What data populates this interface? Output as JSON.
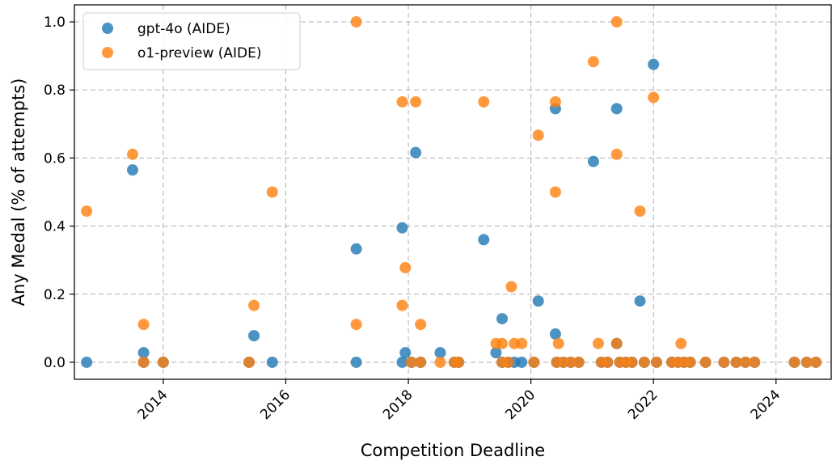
{
  "chart_data": {
    "type": "scatter",
    "xlabel": "Competition Deadline",
    "ylabel": "Any Medal (% of attempts)",
    "xlim": [
      2012.55,
      2024.9
    ],
    "ylim": [
      -0.05,
      1.05
    ],
    "x_ticks": [
      2014,
      2016,
      2018,
      2020,
      2022,
      2024
    ],
    "x_tick_labels": [
      "2014",
      "2016",
      "2018",
      "2020",
      "2022",
      "2024"
    ],
    "y_ticks": [
      0.0,
      0.2,
      0.4,
      0.6,
      0.8,
      1.0
    ],
    "y_tick_labels": [
      "0.0",
      "0.2",
      "0.4",
      "0.6",
      "0.8",
      "1.0"
    ],
    "grid": true,
    "legend_position": "top-left",
    "series": [
      {
        "name": "gpt-4o (AIDE)",
        "color": "#1f77b4",
        "points": [
          [
            2012.75,
            0.0
          ],
          [
            2013.5,
            0.565
          ],
          [
            2013.68,
            0.028
          ],
          [
            2013.68,
            0.0
          ],
          [
            2014.0,
            0.0
          ],
          [
            2015.4,
            0.0
          ],
          [
            2015.48,
            0.078
          ],
          [
            2015.78,
            0.0
          ],
          [
            2017.15,
            0.333
          ],
          [
            2017.15,
            0.0
          ],
          [
            2017.9,
            0.395
          ],
          [
            2017.9,
            0.0
          ],
          [
            2017.95,
            0.028
          ],
          [
            2018.05,
            0.0
          ],
          [
            2018.12,
            0.616
          ],
          [
            2018.2,
            0.0
          ],
          [
            2018.52,
            0.028
          ],
          [
            2018.75,
            0.0
          ],
          [
            2018.82,
            0.0
          ],
          [
            2019.23,
            0.36
          ],
          [
            2019.43,
            0.028
          ],
          [
            2019.53,
            0.128
          ],
          [
            2019.53,
            0.0
          ],
          [
            2019.63,
            0.0
          ],
          [
            2019.73,
            0.0
          ],
          [
            2019.85,
            0.0
          ],
          [
            2020.05,
            0.0
          ],
          [
            2020.12,
            0.18
          ],
          [
            2020.4,
            0.745
          ],
          [
            2020.4,
            0.083
          ],
          [
            2020.42,
            0.0
          ],
          [
            2020.53,
            0.0
          ],
          [
            2020.65,
            0.0
          ],
          [
            2020.78,
            0.0
          ],
          [
            2021.02,
            0.59
          ],
          [
            2021.15,
            0.0
          ],
          [
            2021.25,
            0.0
          ],
          [
            2021.4,
            0.745
          ],
          [
            2021.4,
            0.055
          ],
          [
            2021.45,
            0.0
          ],
          [
            2021.55,
            0.0
          ],
          [
            2021.65,
            0.0
          ],
          [
            2021.78,
            0.18
          ],
          [
            2021.85,
            0.0
          ],
          [
            2022.0,
            0.875
          ],
          [
            2022.05,
            0.0
          ],
          [
            2022.3,
            0.0
          ],
          [
            2022.4,
            0.0
          ],
          [
            2022.5,
            0.0
          ],
          [
            2022.6,
            0.0
          ],
          [
            2022.85,
            0.0
          ],
          [
            2023.15,
            0.0
          ],
          [
            2023.35,
            0.0
          ],
          [
            2023.5,
            0.0
          ],
          [
            2023.65,
            0.0
          ],
          [
            2024.3,
            0.0
          ],
          [
            2024.5,
            0.0
          ],
          [
            2024.65,
            0.0
          ]
        ]
      },
      {
        "name": "o1-preview (AIDE)",
        "color": "#ff7f0e",
        "points": [
          [
            2012.75,
            0.444
          ],
          [
            2013.5,
            0.611
          ],
          [
            2013.68,
            0.111
          ],
          [
            2013.68,
            0.0
          ],
          [
            2014.0,
            0.0
          ],
          [
            2015.4,
            0.0
          ],
          [
            2015.48,
            0.167
          ],
          [
            2015.78,
            0.5
          ],
          [
            2017.15,
            1.0
          ],
          [
            2017.15,
            0.111
          ],
          [
            2017.9,
            0.765
          ],
          [
            2017.9,
            0.167
          ],
          [
            2017.95,
            0.278
          ],
          [
            2018.05,
            0.0
          ],
          [
            2018.12,
            0.765
          ],
          [
            2018.2,
            0.111
          ],
          [
            2018.2,
            0.0
          ],
          [
            2018.52,
            0.0
          ],
          [
            2018.75,
            0.0
          ],
          [
            2018.82,
            0.0
          ],
          [
            2019.23,
            0.765
          ],
          [
            2019.43,
            0.055
          ],
          [
            2019.53,
            0.055
          ],
          [
            2019.53,
            0.0
          ],
          [
            2019.63,
            0.0
          ],
          [
            2019.68,
            0.222
          ],
          [
            2019.73,
            0.055
          ],
          [
            2019.85,
            0.055
          ],
          [
            2020.05,
            0.0
          ],
          [
            2020.12,
            0.667
          ],
          [
            2020.4,
            0.765
          ],
          [
            2020.4,
            0.5
          ],
          [
            2020.45,
            0.055
          ],
          [
            2020.42,
            0.0
          ],
          [
            2020.53,
            0.0
          ],
          [
            2020.65,
            0.0
          ],
          [
            2020.78,
            0.0
          ],
          [
            2021.02,
            0.883
          ],
          [
            2021.1,
            0.055
          ],
          [
            2021.15,
            0.0
          ],
          [
            2021.25,
            0.0
          ],
          [
            2021.4,
            1.0
          ],
          [
            2021.4,
            0.611
          ],
          [
            2021.4,
            0.055
          ],
          [
            2021.45,
            0.0
          ],
          [
            2021.55,
            0.0
          ],
          [
            2021.65,
            0.0
          ],
          [
            2021.78,
            0.444
          ],
          [
            2021.85,
            0.0
          ],
          [
            2022.0,
            0.778
          ],
          [
            2022.05,
            0.0
          ],
          [
            2022.3,
            0.0
          ],
          [
            2022.4,
            0.0
          ],
          [
            2022.45,
            0.055
          ],
          [
            2022.5,
            0.0
          ],
          [
            2022.6,
            0.0
          ],
          [
            2022.85,
            0.0
          ],
          [
            2023.15,
            0.0
          ],
          [
            2023.35,
            0.0
          ],
          [
            2023.5,
            0.0
          ],
          [
            2023.65,
            0.0
          ],
          [
            2024.3,
            0.0
          ],
          [
            2024.5,
            0.0
          ],
          [
            2024.65,
            0.0
          ]
        ]
      }
    ]
  }
}
